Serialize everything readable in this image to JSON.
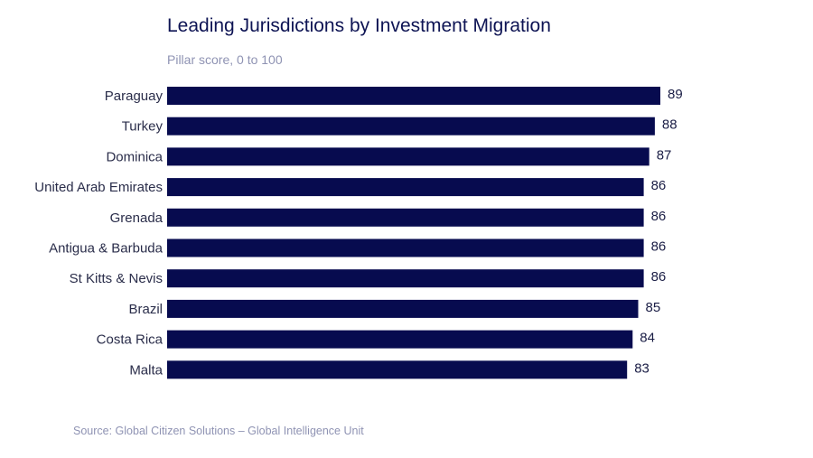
{
  "chart_data": {
    "type": "bar",
    "orientation": "horizontal",
    "title": "Leading Jurisdictions by Investment Migration",
    "subtitle": "Pillar score, 0 to 100",
    "categories": [
      "Paraguay",
      "Turkey",
      "Dominica",
      "United Arab Emirates",
      "Grenada",
      "Antigua & Barbuda",
      "St Kitts & Nevis",
      "Brazil",
      "Costa Rica",
      "Malta"
    ],
    "values": [
      89,
      88,
      87,
      86,
      86,
      86,
      86,
      85,
      84,
      83
    ],
    "xlim": [
      0,
      89
    ],
    "grid": false,
    "legend": "none",
    "bar_color": "#070b4f",
    "source": "Source: Global Citizen Solutions – Global Intelligence Unit"
  }
}
